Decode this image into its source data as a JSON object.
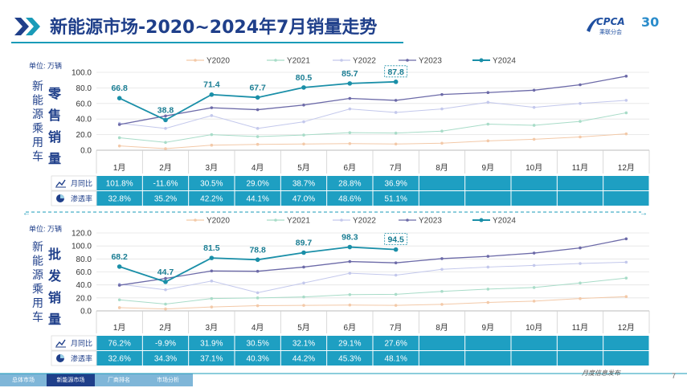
{
  "title": "新能源市场-2020~2024年7月销量走势",
  "logo": {
    "brand": "CPCA",
    "sub": "乘联分会",
    "anniversary": "30"
  },
  "months": [
    "1月",
    "2月",
    "3月",
    "4月",
    "5月",
    "6月",
    "7月",
    "8月",
    "9月",
    "10月",
    "11月",
    "12月"
  ],
  "unit_label": "单位: 万辆",
  "side_label": "新能源乘用车",
  "colors": {
    "Y2020": "#f3c9a8",
    "Y2021": "#a8dcc8",
    "Y2022": "#c3c8ec",
    "Y2023": "#6c6aa8",
    "Y2024": "#1a8fa8",
    "table_bg": "#1e9fc2",
    "title": "#1f3f8a"
  },
  "chart_data": [
    {
      "type": "line",
      "panel_label": "零售销量",
      "ylim": [
        0,
        100
      ],
      "yticks": [
        "0.0",
        "20.0",
        "40.0",
        "60.0",
        "80.0",
        "100.0"
      ],
      "legend_position": "top",
      "series": [
        {
          "name": "Y2020",
          "values": [
            5.5,
            2.0,
            6.5,
            7.5,
            8.0,
            8.5,
            8.0,
            9.0,
            12.0,
            14.0,
            17.0,
            21.0
          ]
        },
        {
          "name": "Y2021",
          "values": [
            16.0,
            10.0,
            20.0,
            17.5,
            19.5,
            22.5,
            22.0,
            24.5,
            33.5,
            32.0,
            37.0,
            48.0
          ]
        },
        {
          "name": "Y2022",
          "values": [
            34.5,
            28.0,
            44.5,
            28.0,
            36.5,
            53.0,
            48.5,
            53.0,
            61.5,
            55.0,
            60.0,
            64.0
          ]
        },
        {
          "name": "Y2023",
          "values": [
            33.0,
            44.0,
            54.5,
            52.0,
            58.0,
            66.5,
            64.0,
            71.5,
            74.0,
            77.0,
            84.0,
            95.0
          ]
        },
        {
          "name": "Y2024",
          "values": [
            66.8,
            38.8,
            71.4,
            67.7,
            80.5,
            85.7,
            87.8
          ],
          "labels": [
            "66.8",
            "38.8",
            "71.4",
            "67.7",
            "80.5",
            "85.7",
            "87.8"
          ]
        }
      ],
      "table": {
        "rows": [
          {
            "label": "月同比",
            "values": [
              "101.8%",
              "-11.6%",
              "30.5%",
              "29.0%",
              "38.7%",
              "28.8%",
              "36.9%",
              "",
              "",
              "",
              "",
              ""
            ]
          },
          {
            "label": "渗透率",
            "values": [
              "32.8%",
              "35.2%",
              "42.2%",
              "44.1%",
              "47.0%",
              "48.6%",
              "51.1%",
              "",
              "",
              "",
              "",
              ""
            ]
          }
        ]
      }
    },
    {
      "type": "line",
      "panel_label": "批发销量",
      "ylim": [
        0,
        120
      ],
      "yticks": [
        "0.0",
        "20.0",
        "40.0",
        "60.0",
        "80.0",
        "100.0",
        "120.0"
      ],
      "legend_position": "top",
      "series": [
        {
          "name": "Y2020",
          "values": [
            5.0,
            3.0,
            6.0,
            8.0,
            8.5,
            9.0,
            8.5,
            10.0,
            13.0,
            15.0,
            19.0,
            22.0
          ]
        },
        {
          "name": "Y2021",
          "values": [
            17.0,
            10.5,
            19.0,
            20.0,
            21.5,
            25.0,
            25.5,
            30.0,
            33.5,
            36.0,
            43.0,
            50.5
          ]
        },
        {
          "name": "Y2022",
          "values": [
            41.0,
            32.5,
            46.0,
            28.0,
            43.0,
            58.0,
            55.0,
            64.0,
            67.5,
            70.0,
            73.0,
            75.0
          ]
        },
        {
          "name": "Y2023",
          "values": [
            39.5,
            50.0,
            61.5,
            61.0,
            67.5,
            76.0,
            74.0,
            80.5,
            84.0,
            89.0,
            97.0,
            111.0
          ]
        },
        {
          "name": "Y2024",
          "values": [
            68.2,
            44.7,
            81.5,
            78.8,
            89.7,
            98.3,
            94.5
          ],
          "labels": [
            "68.2",
            "44.7",
            "81.5",
            "78.8",
            "89.7",
            "98.3",
            "94.5"
          ]
        }
      ],
      "table": {
        "rows": [
          {
            "label": "月同比",
            "values": [
              "76.2%",
              "-9.9%",
              "31.9%",
              "30.5%",
              "32.1%",
              "29.1%",
              "27.6%",
              "",
              "",
              "",
              "",
              ""
            ]
          },
          {
            "label": "渗透率",
            "values": [
              "32.6%",
              "34.3%",
              "37.1%",
              "40.3%",
              "44.2%",
              "45.3%",
              "48.1%",
              "",
              "",
              "",
              "",
              ""
            ]
          }
        ]
      }
    }
  ],
  "footer": {
    "tabs": [
      "总体市场",
      "新能源市场",
      "厂商排名",
      "市场分析"
    ],
    "note": "月度信息发布",
    "page": "7"
  }
}
